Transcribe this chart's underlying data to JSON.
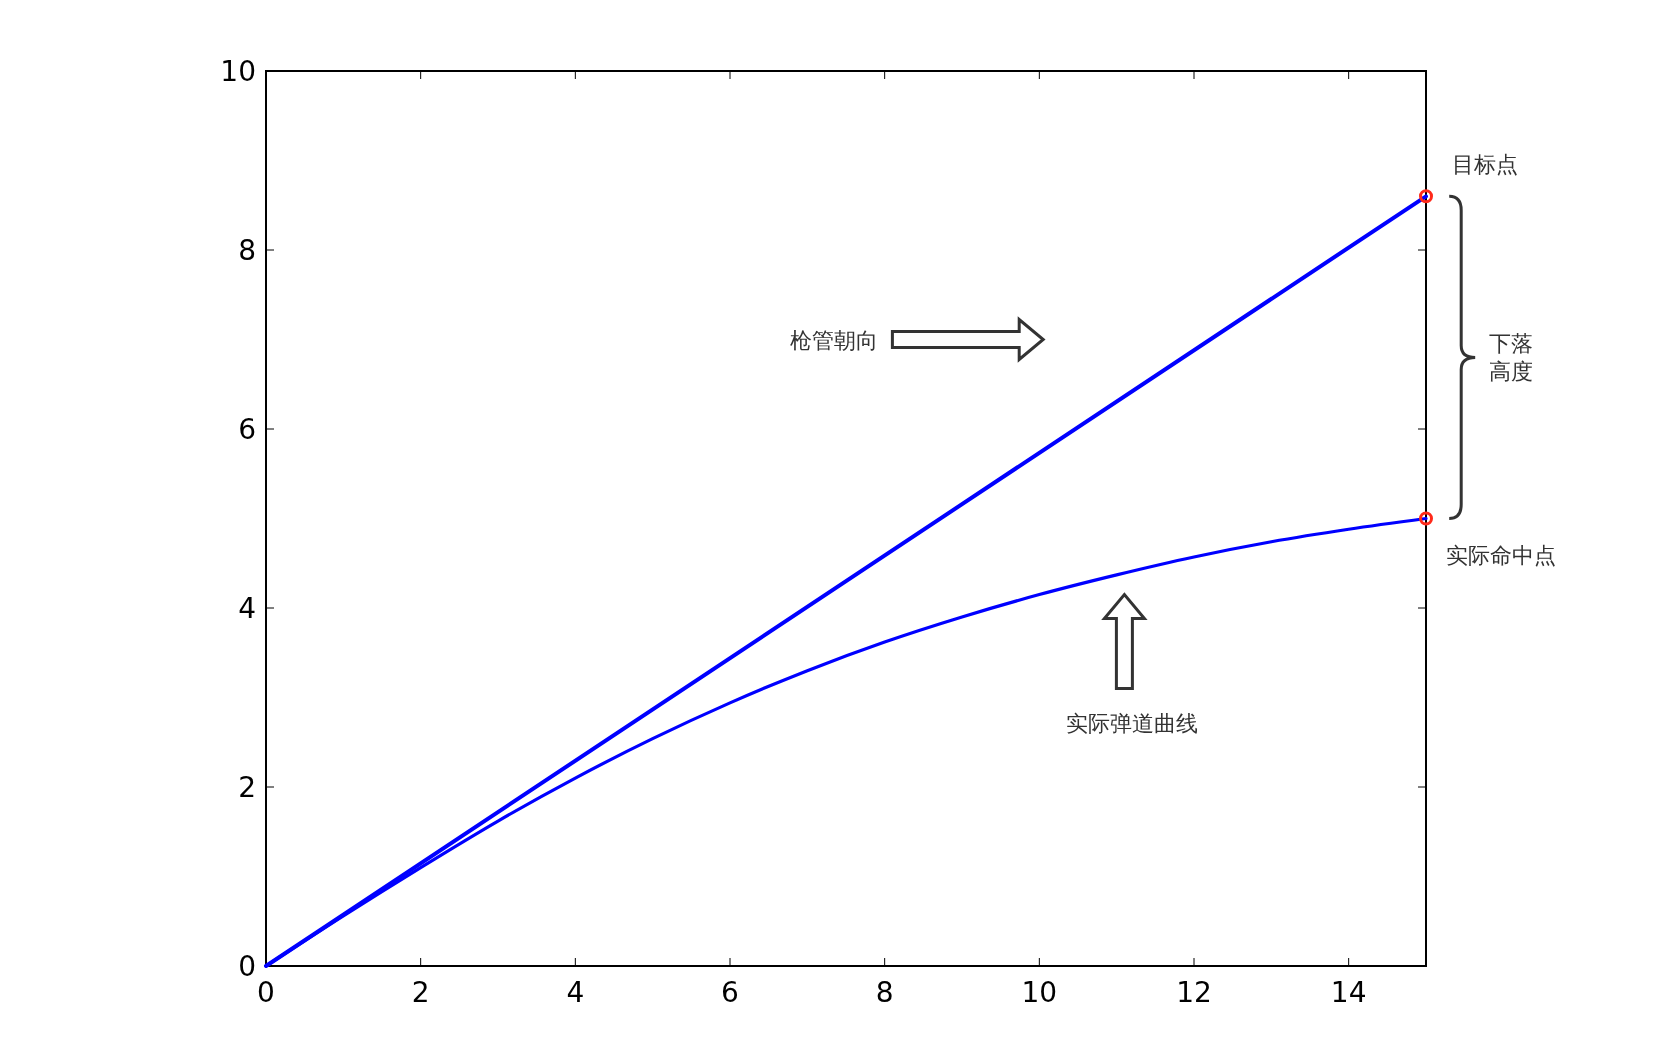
{
  "chart_data": {
    "type": "line",
    "xlim": [
      0,
      15
    ],
    "ylim": [
      0,
      10
    ],
    "xticks": [
      0,
      2,
      4,
      6,
      8,
      10,
      12,
      14
    ],
    "yticks": [
      0,
      2,
      4,
      6,
      8,
      10
    ],
    "grid": false,
    "series": [
      {
        "color": "#0000ff",
        "x": [
          0,
          15
        ],
        "values": [
          0,
          8.6
        ]
      },
      {
        "color": "#0000ff",
        "x": [
          0,
          1,
          2,
          3,
          4,
          5,
          6,
          7,
          8,
          9,
          10,
          11,
          12,
          13,
          14,
          15
        ],
        "values": [
          0,
          0.56,
          1.1,
          1.62,
          2.1,
          2.54,
          2.94,
          3.3,
          3.62,
          3.9,
          4.15,
          4.37,
          4.57,
          4.74,
          4.88,
          5.0
        ]
      },
      {
        "type": "scatter",
        "color": "#ff2a1a",
        "marker": "circle",
        "x": [
          15,
          15
        ],
        "values": [
          8.6,
          5.0
        ]
      }
    ],
    "annotations": [
      {
        "text": "目标点",
        "x": 15,
        "y": 8.6
      },
      {
        "text": "实际命中点",
        "x": 15,
        "y": 5.0
      },
      "下落高度",
      "枪管朝向",
      "实际弹道曲线"
    ]
  }
}
